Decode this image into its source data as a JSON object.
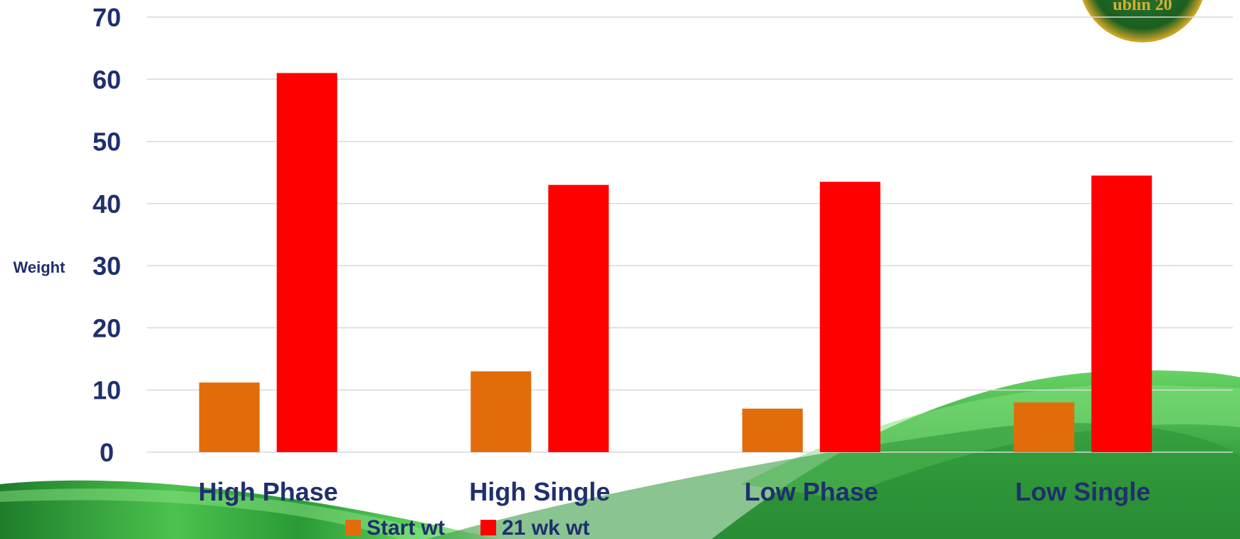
{
  "chart_data": {
    "type": "bar",
    "categories": [
      "High Phase",
      "High Single",
      "Low Phase",
      "Low Single"
    ],
    "series": [
      {
        "name": "Start wt",
        "values": [
          11.2,
          13.0,
          7.0,
          8.0
        ],
        "color": "#e36c0a"
      },
      {
        "name": "21 wk wt",
        "values": [
          61.0,
          43.0,
          43.5,
          44.5
        ],
        "color": "#ff0000"
      }
    ],
    "ylabel": "Weight",
    "xlabel": "",
    "ylim": [
      0,
      70
    ],
    "yticks": [
      "0",
      "10",
      "20",
      "30",
      "40",
      "50",
      "60",
      "70"
    ],
    "grid": true,
    "legend_position": "bottom"
  },
  "colors": {
    "text": "#1f2f6e",
    "grid": "#d9d9d9",
    "swoosh": "#2e9b3a"
  },
  "decor": {
    "logo_text": "ublin 20"
  }
}
